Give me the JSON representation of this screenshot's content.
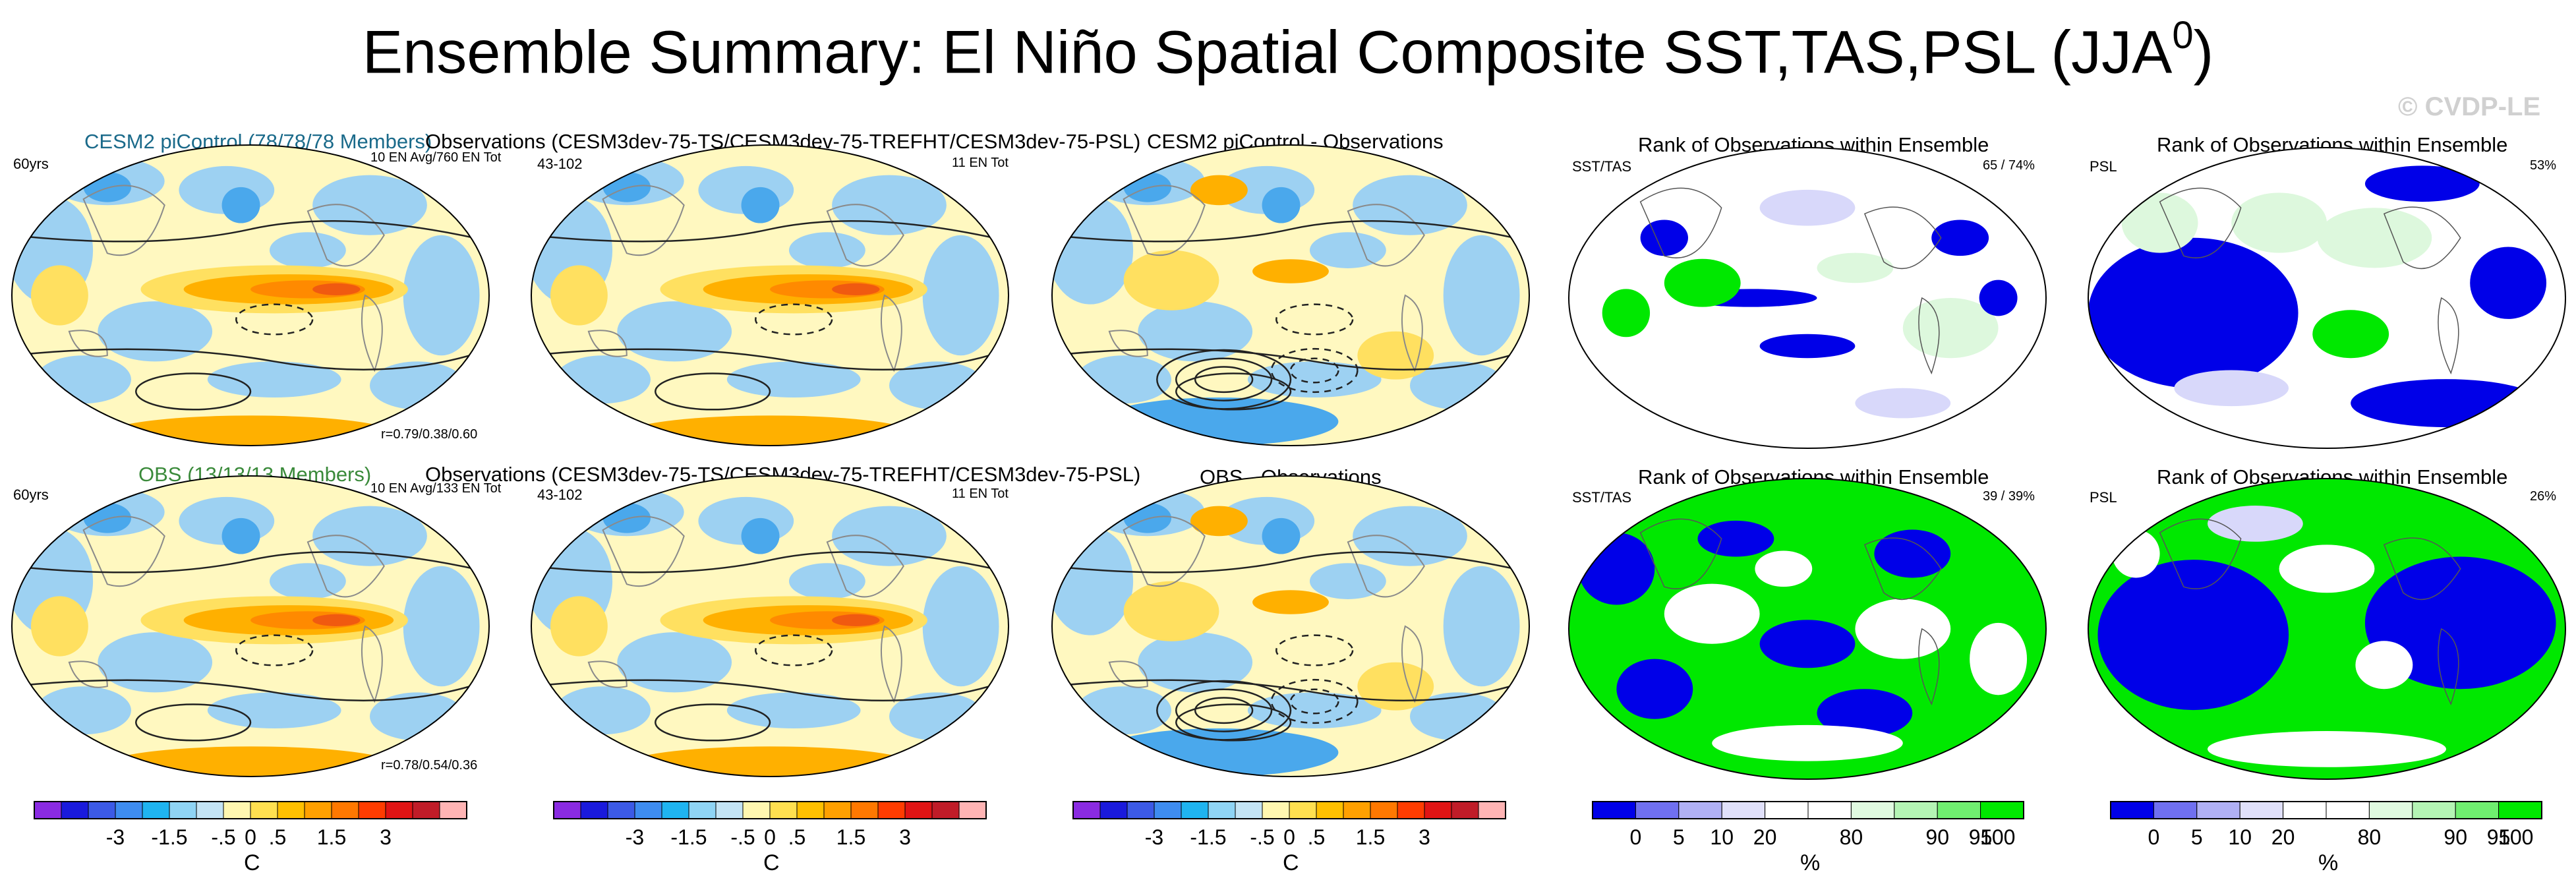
{
  "title": {
    "main": "Ensemble Summary: El Niño Spatial Composite SST,TAS,PSL (JJA",
    "sup": "0",
    "close": ")"
  },
  "watermark": "© CVDP-LE",
  "rows": [
    {
      "ensemble_title": "CESM2 piControl (78/78/78 Members)",
      "obs_title": "Observations (CESM3dev-75-TS/CESM3dev-75-TREFHT/CESM3dev-75-PSL)",
      "diff_title": "CESM2 piControl - Observations",
      "rank1_title": "Rank of Observations within Ensemble",
      "rank2_title": "Rank of Observations within Ensemble",
      "ens_left": "60yrs",
      "ens_right": "10 EN Avg/760 EN Tot",
      "ens_corr": "r=0.79/0.38/0.60",
      "obs_left": "43-102",
      "obs_right": "11 EN Tot",
      "rank1_left": "SST/TAS",
      "rank1_right": "65 / 74%",
      "rank2_left": "PSL",
      "rank2_right": "53%"
    },
    {
      "ensemble_title": "OBS (13/13/13 Members)",
      "obs_title": "Observations (CESM3dev-75-TS/CESM3dev-75-TREFHT/CESM3dev-75-PSL)",
      "diff_title": "OBS - Observations",
      "rank1_title": "Rank of Observations within Ensemble",
      "rank2_title": "Rank of Observations within Ensemble",
      "ens_left": "60yrs",
      "ens_right": "10 EN Avg/133 EN Tot",
      "ens_corr": "r=0.78/0.54/0.36",
      "obs_left": "43-102",
      "obs_right": "11 EN Tot",
      "rank1_left": "SST/TAS",
      "rank1_right": "39 / 39%",
      "rank2_left": "PSL",
      "rank2_right": "26%"
    }
  ],
  "colorbars": {
    "temp_colors": [
      "#8a2be2",
      "#1a1adc",
      "#3c5ae6",
      "#3e8cf0",
      "#1fb4f0",
      "#8fd4f4",
      "#c4e4f4",
      "#fff7b0",
      "#ffe050",
      "#ffc000",
      "#ffa000",
      "#ff7800",
      "#ff3c00",
      "#e01414",
      "#c01c28",
      "#ffb4b4"
    ],
    "temp_labels": [
      "-3",
      "-1.5",
      "-.5",
      "0",
      ".5",
      "1.5",
      "3"
    ],
    "temp_unit": "C",
    "rank_colors": [
      "#0000e8",
      "#7070f0",
      "#b0b0f4",
      "#e0e0fa",
      "#ffffff",
      "#ffffff",
      "#e0fae0",
      "#b4f4b4",
      "#70ee70",
      "#00e800"
    ],
    "rank_labels": [
      "0",
      "5",
      "10",
      "20",
      "80",
      "90",
      "95",
      "100"
    ],
    "rank_unit": "%"
  },
  "map_colors": {
    "blue": "#9dd1f2",
    "deepblue": "#4aa8ec",
    "cream": "#fff8c0",
    "yellow": "#ffe060",
    "orange": "#ffb000",
    "deeporange": "#ff8a00",
    "red": "#f05a10",
    "rank_blue": "#0000e8",
    "rank_green": "#00e800",
    "rank_lightblue": "#d8d8fa",
    "rank_lightgreen": "#ddf8dd"
  }
}
